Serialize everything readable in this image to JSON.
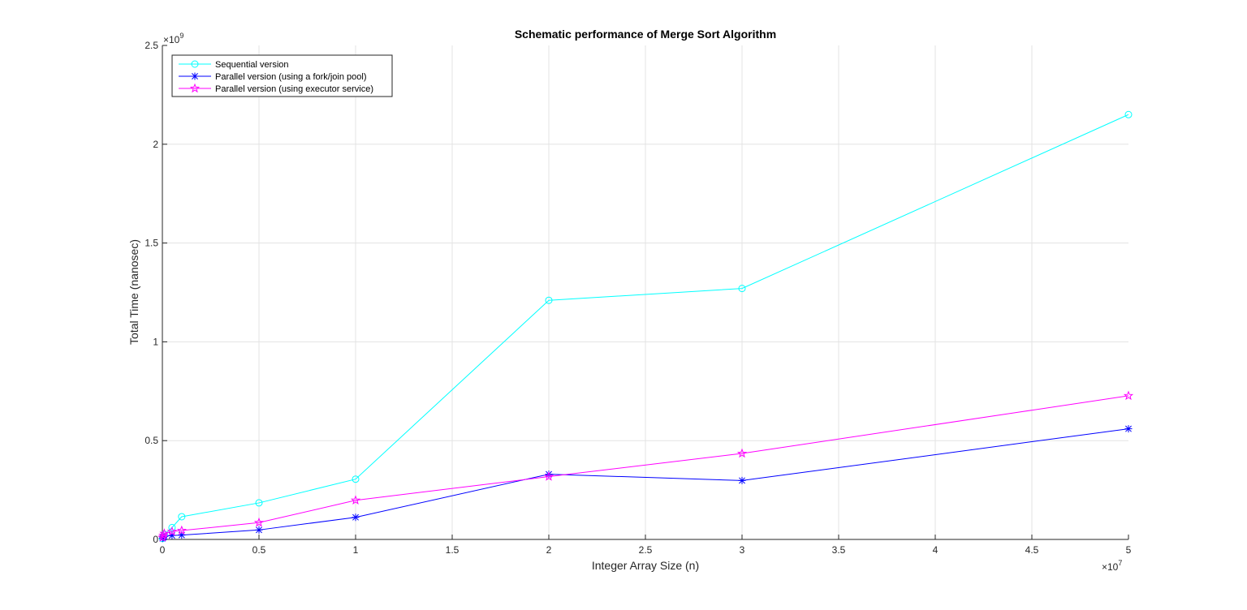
{
  "chart_data": {
    "type": "line",
    "title": "Schematic performance of Merge Sort Algorithm",
    "xlabel": "Integer Array Size (n)",
    "ylabel": "Total Time (nanosec)",
    "xlim": [
      0,
      50000000
    ],
    "ylim": [
      0,
      2500000000
    ],
    "xticks": [
      0,
      5000000,
      10000000,
      15000000,
      20000000,
      25000000,
      30000000,
      35000000,
      40000000,
      45000000,
      50000000
    ],
    "xtick_labels": [
      "0",
      "0.5",
      "1",
      "1.5",
      "2",
      "2.5",
      "3",
      "3.5",
      "4",
      "4.5",
      "5"
    ],
    "yticks": [
      0,
      500000000,
      1000000000,
      1500000000,
      2000000000,
      2500000000
    ],
    "ytick_labels": [
      "0",
      "0.5",
      "1",
      "1.5",
      "2",
      "2.5"
    ],
    "x_multiplier": {
      "base": "×10",
      "exp": "7"
    },
    "y_multiplier": {
      "base": "×10",
      "exp": "9"
    },
    "grid": true,
    "legend_position": "top-left",
    "series": [
      {
        "name": "Sequential version",
        "color": "#00ffff",
        "marker": "circle",
        "x": [
          10000,
          50000,
          100000,
          500000,
          1000000,
          5000000,
          10000000,
          20000000,
          30000000,
          50000000
        ],
        "y": [
          5000000,
          15000000,
          25000000,
          60000000,
          115000000,
          185000000,
          305000000,
          1210000000,
          1270000000,
          2150000000
        ]
      },
      {
        "name": "Parallel version (using a fork/join pool)",
        "color": "#0000ff",
        "marker": "asterisk",
        "x": [
          10000,
          50000,
          100000,
          500000,
          1000000,
          5000000,
          10000000,
          20000000,
          30000000,
          50000000
        ],
        "y": [
          5000000,
          10000000,
          15000000,
          20000000,
          22000000,
          48000000,
          112000000,
          330000000,
          298000000,
          560000000
        ]
      },
      {
        "name": "Parallel version (using executor service)",
        "color": "#ff00ff",
        "marker": "pentagram",
        "x": [
          10000,
          50000,
          100000,
          500000,
          1000000,
          5000000,
          10000000,
          20000000,
          30000000,
          50000000
        ],
        "y": [
          10000000,
          20000000,
          30000000,
          40000000,
          45000000,
          85000000,
          198000000,
          318000000,
          435000000,
          727000000
        ]
      }
    ]
  }
}
